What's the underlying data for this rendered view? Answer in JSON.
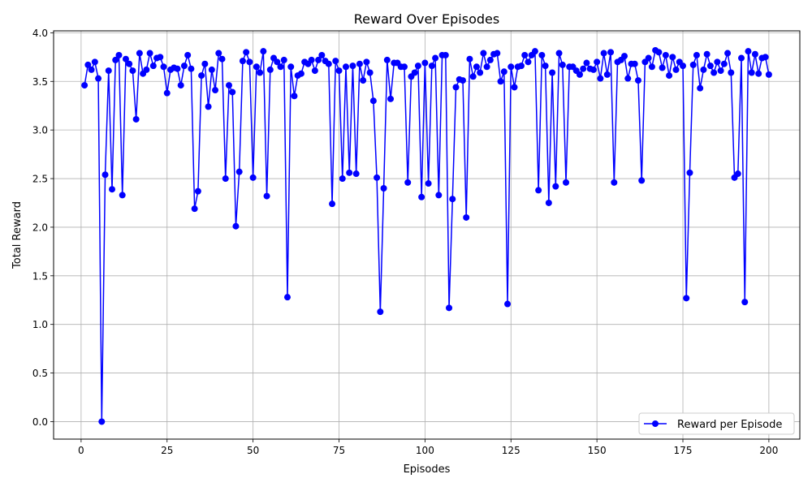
{
  "chart_data": {
    "type": "line",
    "title": "Reward Over Episodes",
    "xlabel": "Episodes",
    "ylabel": "Total Reward",
    "xlim": [
      -8,
      209
    ],
    "ylim": [
      -0.18,
      4.02
    ],
    "xticks": [
      0,
      25,
      50,
      75,
      100,
      125,
      150,
      175,
      200
    ],
    "xtick_labels": [
      "0",
      "25",
      "50",
      "75",
      "100",
      "125",
      "150",
      "175",
      "200"
    ],
    "yticks": [
      0.0,
      0.5,
      1.0,
      1.5,
      2.0,
      2.5,
      3.0,
      3.5,
      4.0
    ],
    "ytick_labels": [
      "0.0",
      "0.5",
      "1.0",
      "1.5",
      "2.0",
      "2.5",
      "3.0",
      "3.5",
      "4.0"
    ],
    "grid": true,
    "legend_position": "bottom-right",
    "series": [
      {
        "name": "Reward per Episode",
        "color": "#0000ff",
        "x": [
          1,
          2,
          3,
          4,
          5,
          6,
          7,
          8,
          9,
          10,
          11,
          12,
          13,
          14,
          15,
          16,
          17,
          18,
          19,
          20,
          21,
          22,
          23,
          24,
          25,
          26,
          27,
          28,
          29,
          30,
          31,
          32,
          33,
          34,
          35,
          36,
          37,
          38,
          39,
          40,
          41,
          42,
          43,
          44,
          45,
          46,
          47,
          48,
          49,
          50,
          51,
          52,
          53,
          54,
          55,
          56,
          57,
          58,
          59,
          60,
          61,
          62,
          63,
          64,
          65,
          66,
          67,
          68,
          69,
          70,
          71,
          72,
          73,
          74,
          75,
          76,
          77,
          78,
          79,
          80,
          81,
          82,
          83,
          84,
          85,
          86,
          87,
          88,
          89,
          90,
          91,
          92,
          93,
          94,
          95,
          96,
          97,
          98,
          99,
          100,
          101,
          102,
          103,
          104,
          105,
          106,
          107,
          108,
          109,
          110,
          111,
          112,
          113,
          114,
          115,
          116,
          117,
          118,
          119,
          120,
          121,
          122,
          123,
          124,
          125,
          126,
          127,
          128,
          129,
          130,
          131,
          132,
          133,
          134,
          135,
          136,
          137,
          138,
          139,
          140,
          141,
          142,
          143,
          144,
          145,
          146,
          147,
          148,
          149,
          150,
          151,
          152,
          153,
          154,
          155,
          156,
          157,
          158,
          159,
          160,
          161,
          162,
          163,
          164,
          165,
          166,
          167,
          168,
          169,
          170,
          171,
          172,
          173,
          174,
          175,
          176,
          177,
          178,
          179,
          180,
          181,
          182,
          183,
          184,
          185,
          186,
          187,
          188,
          189,
          190,
          191,
          192,
          193,
          194,
          195,
          196,
          197,
          198,
          199,
          200
        ],
        "values": [
          3.46,
          3.67,
          3.62,
          3.7,
          3.53,
          0.0,
          2.54,
          3.61,
          2.39,
          3.72,
          3.77,
          2.33,
          3.73,
          3.68,
          3.61,
          3.11,
          3.79,
          3.58,
          3.62,
          3.79,
          3.66,
          3.74,
          3.75,
          3.65,
          3.38,
          3.62,
          3.64,
          3.63,
          3.46,
          3.66,
          3.77,
          3.63,
          2.19,
          2.37,
          3.56,
          3.68,
          3.24,
          3.62,
          3.41,
          3.79,
          3.73,
          2.5,
          3.46,
          3.39,
          2.01,
          2.57,
          3.71,
          3.8,
          3.7,
          2.51,
          3.65,
          3.59,
          3.81,
          2.32,
          3.62,
          3.74,
          3.7,
          3.65,
          3.72,
          1.28,
          3.65,
          3.35,
          3.56,
          3.58,
          3.7,
          3.68,
          3.72,
          3.61,
          3.72,
          3.77,
          3.71,
          3.68,
          2.24,
          3.71,
          3.61,
          2.5,
          3.65,
          2.56,
          3.66,
          2.55,
          3.68,
          3.51,
          3.7,
          3.59,
          3.3,
          2.51,
          1.13,
          2.4,
          3.72,
          3.32,
          3.69,
          3.69,
          3.65,
          3.65,
          2.46,
          3.55,
          3.59,
          3.66,
          2.31,
          3.69,
          2.45,
          3.66,
          3.74,
          2.33,
          3.77,
          3.77,
          1.17,
          2.29,
          3.44,
          3.52,
          3.51,
          2.1,
          3.73,
          3.55,
          3.65,
          3.59,
          3.79,
          3.65,
          3.72,
          3.78,
          3.79,
          3.5,
          3.6,
          1.21,
          3.65,
          3.44,
          3.65,
          3.66,
          3.77,
          3.7,
          3.77,
          3.81,
          2.38,
          3.77,
          3.66,
          2.25,
          3.59,
          2.42,
          3.79,
          3.67,
          2.46,
          3.65,
          3.65,
          3.61,
          3.57,
          3.63,
          3.69,
          3.63,
          3.62,
          3.7,
          3.53,
          3.79,
          3.57,
          3.8,
          2.46,
          3.7,
          3.72,
          3.76,
          3.53,
          3.68,
          3.68,
          3.51,
          2.48,
          3.7,
          3.74,
          3.65,
          3.82,
          3.8,
          3.64,
          3.77,
          3.56,
          3.75,
          3.62,
          3.7,
          3.66,
          1.27,
          2.56,
          3.67,
          3.77,
          3.43,
          3.62,
          3.78,
          3.66,
          3.59,
          3.7,
          3.61,
          3.68,
          3.79,
          3.59,
          2.51,
          2.55,
          3.74,
          1.23,
          3.81,
          3.59,
          3.78,
          3.58,
          3.74,
          3.75,
          3.57
        ]
      }
    ]
  }
}
